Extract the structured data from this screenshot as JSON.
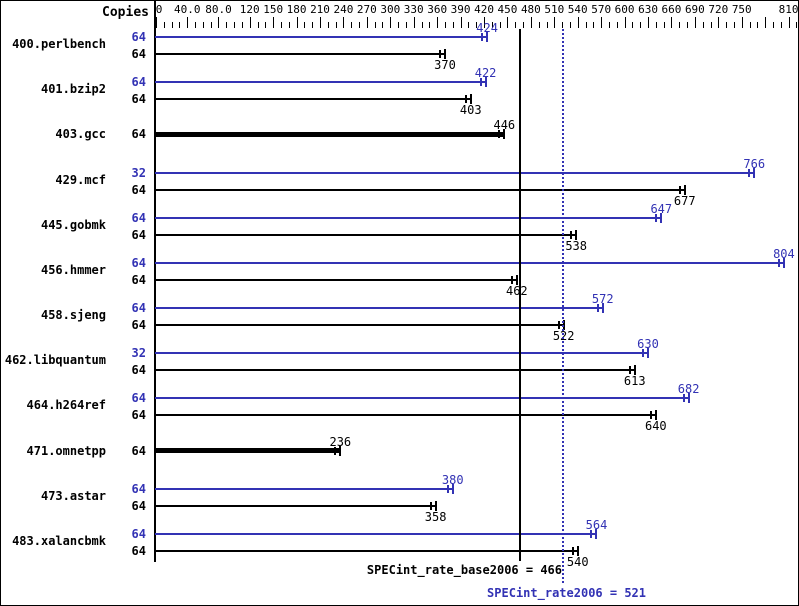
{
  "chart_data": {
    "type": "bar",
    "orientation": "horizontal",
    "copies_header": "Copies",
    "colors": {
      "peak": "#3232b4",
      "base": "#000000"
    },
    "axis": {
      "min": 0,
      "max": 820,
      "minor_step": 10,
      "major_ticks": [
        {
          "value": 0,
          "label": "0"
        },
        {
          "value": 40,
          "label": "40.0"
        },
        {
          "value": 80,
          "label": "80.0"
        },
        {
          "value": 120,
          "label": "120"
        },
        {
          "value": 150,
          "label": "150"
        },
        {
          "value": 180,
          "label": "180"
        },
        {
          "value": 210,
          "label": "210"
        },
        {
          "value": 240,
          "label": "240"
        },
        {
          "value": 270,
          "label": "270"
        },
        {
          "value": 300,
          "label": "300"
        },
        {
          "value": 330,
          "label": "330"
        },
        {
          "value": 360,
          "label": "360"
        },
        {
          "value": 390,
          "label": "390"
        },
        {
          "value": 420,
          "label": "420"
        },
        {
          "value": 450,
          "label": "450"
        },
        {
          "value": 480,
          "label": "480"
        },
        {
          "value": 510,
          "label": "510"
        },
        {
          "value": 540,
          "label": "540"
        },
        {
          "value": 570,
          "label": "570"
        },
        {
          "value": 600,
          "label": "600"
        },
        {
          "value": 630,
          "label": "630"
        },
        {
          "value": 660,
          "label": "660"
        },
        {
          "value": 690,
          "label": "690"
        },
        {
          "value": 720,
          "label": "720"
        },
        {
          "value": 750,
          "label": "750"
        },
        {
          "value": 780,
          "label": ""
        },
        {
          "value": 810,
          "label": "810"
        }
      ]
    },
    "benchmarks": [
      {
        "name": "400.perlbench",
        "bars": [
          {
            "kind": "peak",
            "copies": "64",
            "value": 424
          },
          {
            "kind": "base",
            "copies": "64",
            "value": 370
          }
        ]
      },
      {
        "name": "401.bzip2",
        "bars": [
          {
            "kind": "peak",
            "copies": "64",
            "value": 422
          },
          {
            "kind": "base",
            "copies": "64",
            "value": 403
          }
        ]
      },
      {
        "name": "403.gcc",
        "bars": [
          {
            "kind": "base-only",
            "copies": "64",
            "value": 446
          }
        ]
      },
      {
        "name": "429.mcf",
        "bars": [
          {
            "kind": "peak",
            "copies": "32",
            "value": 766
          },
          {
            "kind": "base",
            "copies": "64",
            "value": 677
          }
        ]
      },
      {
        "name": "445.gobmk",
        "bars": [
          {
            "kind": "peak",
            "copies": "64",
            "value": 647
          },
          {
            "kind": "base",
            "copies": "64",
            "value": 538
          }
        ]
      },
      {
        "name": "456.hmmer",
        "bars": [
          {
            "kind": "peak",
            "copies": "64",
            "value": 804
          },
          {
            "kind": "base",
            "copies": "64",
            "value": 462
          }
        ]
      },
      {
        "name": "458.sjeng",
        "bars": [
          {
            "kind": "peak",
            "copies": "64",
            "value": 572
          },
          {
            "kind": "base",
            "copies": "64",
            "value": 522
          }
        ]
      },
      {
        "name": "462.libquantum",
        "bars": [
          {
            "kind": "peak",
            "copies": "32",
            "value": 630
          },
          {
            "kind": "base",
            "copies": "64",
            "value": 613
          }
        ]
      },
      {
        "name": "464.h264ref",
        "bars": [
          {
            "kind": "peak",
            "copies": "64",
            "value": 682
          },
          {
            "kind": "base",
            "copies": "64",
            "value": 640
          }
        ]
      },
      {
        "name": "471.omnetpp",
        "bars": [
          {
            "kind": "base-only",
            "copies": "64",
            "value": 236
          }
        ]
      },
      {
        "name": "473.astar",
        "bars": [
          {
            "kind": "peak",
            "copies": "64",
            "value": 380
          },
          {
            "kind": "base",
            "copies": "64",
            "value": 358
          }
        ]
      },
      {
        "name": "483.xalancbmk",
        "bars": [
          {
            "kind": "peak",
            "copies": "64",
            "value": 564
          },
          {
            "kind": "base",
            "copies": "64",
            "value": 540
          }
        ]
      }
    ],
    "reference_lines": [
      {
        "name": "SPECint_rate_base2006",
        "value": 466,
        "style": "solid",
        "color": "#000000"
      },
      {
        "name": "SPECint_rate2006",
        "value": 521,
        "style": "dotted",
        "color": "#3232b4"
      }
    ],
    "summary": {
      "base_text": "SPECint_rate_base2006 = 466",
      "peak_text": "SPECint_rate2006 = 521"
    }
  }
}
